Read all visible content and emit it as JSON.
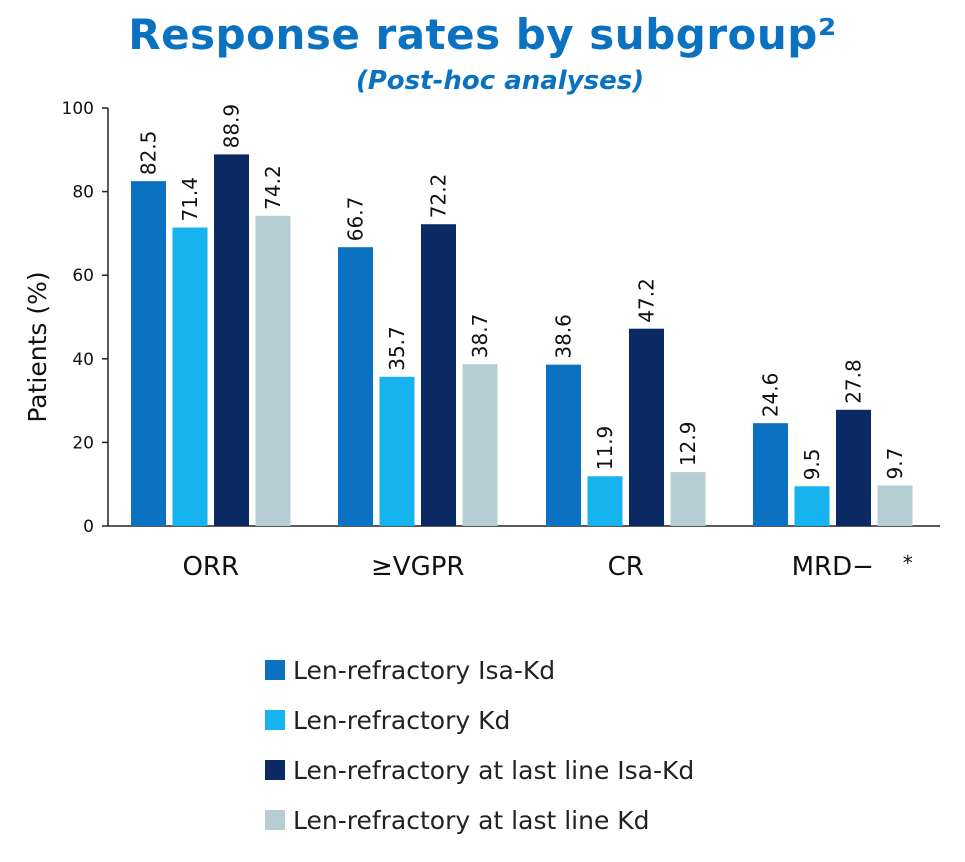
{
  "chart_data": {
    "type": "bar",
    "title": "Response rates by subgroup²",
    "subtitle": "(Post-hoc analyses)",
    "ylabel": "Patients (%)",
    "xlabel": "",
    "ylim": [
      0,
      100
    ],
    "yticks": [
      0,
      20,
      40,
      60,
      80,
      100
    ],
    "grid": false,
    "legend_position": "bottom",
    "categories": [
      "ORR",
      "≥VGPR",
      "CR",
      "MRD−"
    ],
    "category_note": {
      "index": 3,
      "text": "*"
    },
    "series": [
      {
        "name": "Len-refractory Isa-Kd",
        "color": "#0a72c0",
        "values": [
          82.5,
          66.7,
          38.6,
          24.6
        ],
        "labels": [
          "82.5",
          "66.7",
          "38.6",
          "24.6"
        ]
      },
      {
        "name": "Len-refractory Kd",
        "color": "#17b3ee",
        "values": [
          71.4,
          35.7,
          11.9,
          9.5
        ],
        "labels": [
          "71.4",
          "35.7",
          "11.9",
          "9.5"
        ]
      },
      {
        "name": "Len-refractory at last line Isa-Kd",
        "color": "#0b2a63",
        "values": [
          88.9,
          72.2,
          47.2,
          27.8
        ],
        "labels": [
          "88.9",
          "72.2",
          "47.2",
          "27.8"
        ]
      },
      {
        "name": "Len-refractory at last line Kd",
        "color": "#b7cdd4",
        "values": [
          74.2,
          38.7,
          12.9,
          9.7
        ],
        "labels": [
          "74.2",
          "38.7",
          "12.9",
          "9.7"
        ]
      }
    ]
  }
}
